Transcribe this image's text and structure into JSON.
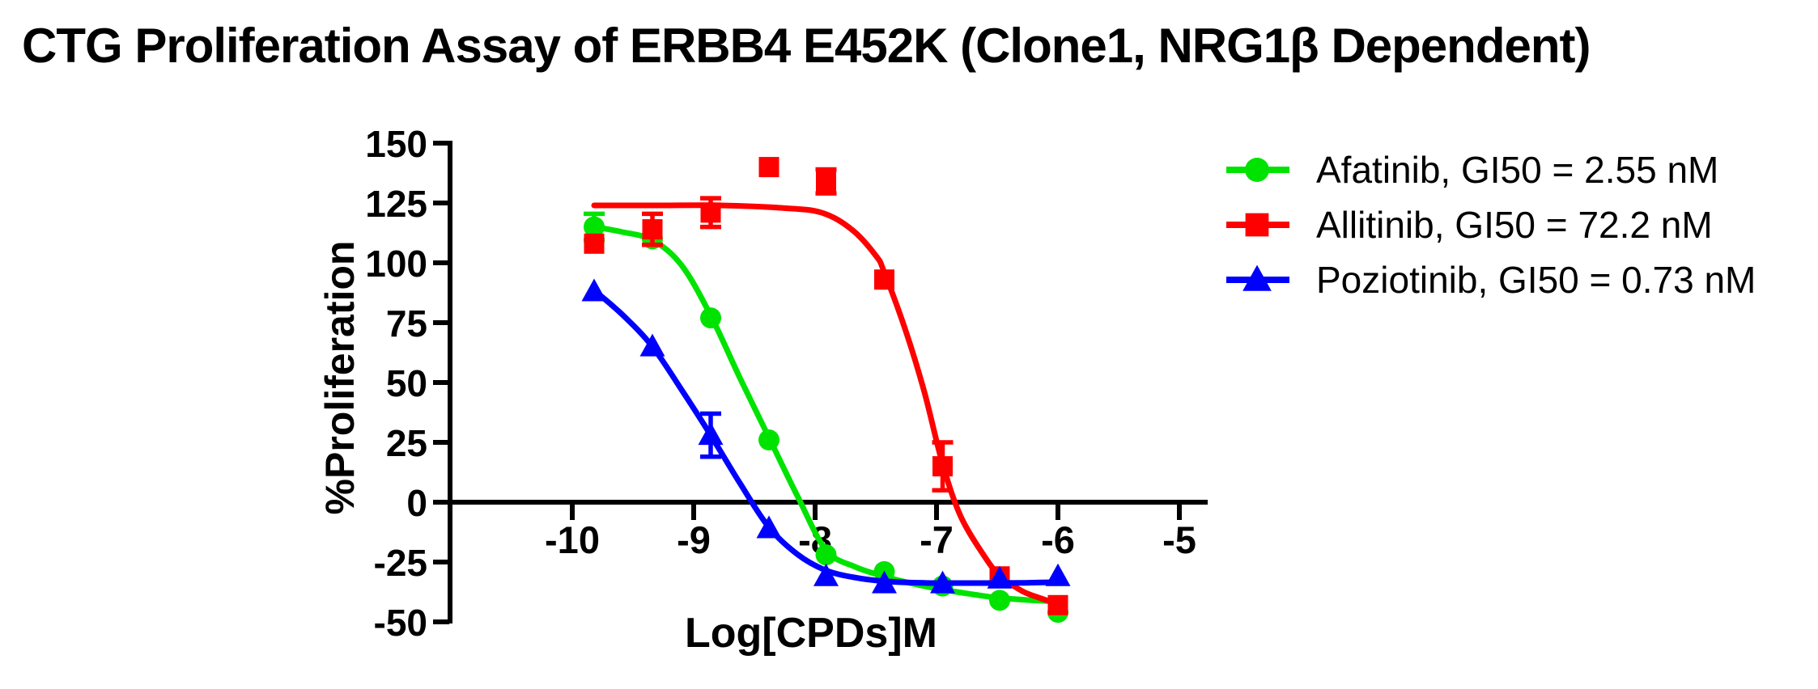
{
  "title": "CTG Proliferation Assay of ERBB4 E452K (Clone1, NRG1β Dependent)",
  "chart_data": {
    "type": "line",
    "title": "CTG Proliferation Assay of ERBB4 E452K (Clone1, NRG1β Dependent)",
    "xlabel": "Log[CPDs]M",
    "ylabel": "%Proliferation",
    "x_ticks": [
      -10,
      -9,
      -8,
      -7,
      -6,
      -5
    ],
    "y_ticks": [
      150,
      125,
      100,
      75,
      50,
      25,
      0,
      -25,
      -50
    ],
    "xlim": [
      -10.6,
      -4.85
    ],
    "ylim": [
      -50,
      150
    ],
    "grid": false,
    "legend_position": "right",
    "axis_color": "#000000",
    "x": [
      -9.82,
      -9.34,
      -8.86,
      -8.38,
      -7.91,
      -7.43,
      -6.95,
      -6.48,
      -6.0
    ],
    "series": [
      {
        "name": "Afatinib",
        "legend_label": "Afatinib, GI50 = 2.55 nM",
        "gi50_nM": 2.55,
        "color": "#00E300",
        "marker": "circle",
        "values": [
          115,
          110,
          77,
          26,
          -22,
          -29,
          -35,
          -41,
          -46
        ],
        "errors": [
          5.5,
          0,
          0,
          0,
          0,
          0,
          0,
          0,
          0
        ],
        "curve": [
          [
            -9.82,
            115
          ],
          [
            -9.6,
            113
          ],
          [
            -9.34,
            109.5
          ],
          [
            -9.1,
            99
          ],
          [
            -8.86,
            78
          ],
          [
            -8.62,
            52
          ],
          [
            -8.38,
            27
          ],
          [
            -8.14,
            2
          ],
          [
            -7.91,
            -20
          ],
          [
            -7.67,
            -27
          ],
          [
            -7.43,
            -31
          ],
          [
            -7.2,
            -34
          ],
          [
            -6.95,
            -36.5
          ],
          [
            -6.7,
            -38.5
          ],
          [
            -6.48,
            -40
          ],
          [
            -6.2,
            -41
          ],
          [
            -6.0,
            -41.5
          ]
        ]
      },
      {
        "name": "Allitinib",
        "legend_label": "Allitinib, GI50 = 72.2 nM",
        "gi50_nM": 72.2,
        "color": "#FF0000",
        "marker": "square",
        "values": [
          108,
          114,
          121,
          140,
          134,
          93,
          15,
          -31,
          -43
        ],
        "errors": [
          0,
          6.5,
          6,
          0,
          5,
          0,
          10,
          0,
          0
        ],
        "curve": [
          [
            -9.82,
            124
          ],
          [
            -9.3,
            124
          ],
          [
            -8.8,
            124
          ],
          [
            -8.3,
            123
          ],
          [
            -7.95,
            121
          ],
          [
            -7.7,
            114
          ],
          [
            -7.5,
            103
          ],
          [
            -7.43,
            96
          ],
          [
            -7.25,
            71
          ],
          [
            -7.1,
            46
          ],
          [
            -6.95,
            16
          ],
          [
            -6.8,
            -6
          ],
          [
            -6.6,
            -23
          ],
          [
            -6.48,
            -30.5
          ],
          [
            -6.3,
            -37
          ],
          [
            -6.15,
            -40
          ],
          [
            -6.0,
            -42.5
          ]
        ]
      },
      {
        "name": "Poziotinib",
        "legend_label": "Poziotinib, GI50 = 0.73 nM",
        "gi50_nM": 0.73,
        "color": "#0000FF",
        "marker": "triangle",
        "values": [
          88,
          65,
          28,
          -11,
          -31,
          -34,
          -34,
          -32,
          -31
        ],
        "errors": [
          0,
          0,
          9,
          0,
          0,
          0,
          0,
          0,
          0
        ],
        "curve": [
          [
            -9.82,
            88.5
          ],
          [
            -9.58,
            78
          ],
          [
            -9.34,
            65
          ],
          [
            -9.1,
            47
          ],
          [
            -8.86,
            28
          ],
          [
            -8.62,
            8
          ],
          [
            -8.38,
            -10.5
          ],
          [
            -8.14,
            -22
          ],
          [
            -7.91,
            -28.5
          ],
          [
            -7.67,
            -31.5
          ],
          [
            -7.43,
            -33
          ],
          [
            -7.1,
            -33.7
          ],
          [
            -6.7,
            -33.8
          ],
          [
            -6.3,
            -33.7
          ],
          [
            -6.0,
            -33.4
          ]
        ]
      }
    ]
  }
}
